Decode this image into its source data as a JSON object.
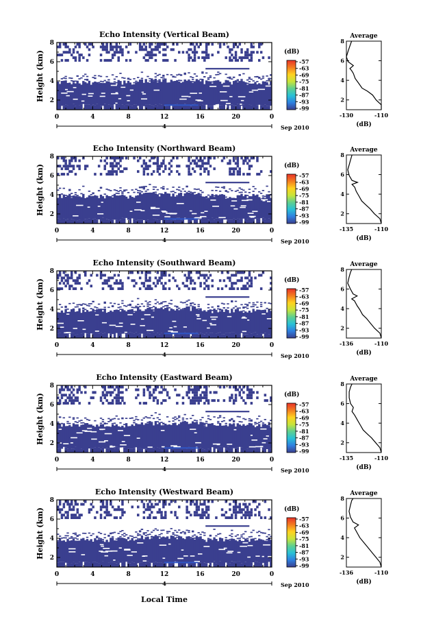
{
  "figure": {
    "xlabel": "Local Time",
    "date_label": "Sep 2010",
    "day_label": "4",
    "ylabel": "Height (km)",
    "avg_title": "Average",
    "unit_label": "(dB)"
  },
  "colors": {
    "low": "#3a3f8f",
    "white": "#ffffff"
  },
  "colorbar": {
    "labels": [
      "-57",
      "-63",
      "-69",
      "-75",
      "-81",
      "-87",
      "-93",
      "-99"
    ],
    "stops": [
      "#e8332a",
      "#f47d20",
      "#ffd21f",
      "#c8e43a",
      "#5fd08f",
      "#29c1d6",
      "#2f80e0",
      "#3a3f8f"
    ]
  },
  "chart_data": [
    {
      "type": "heatmap",
      "title": "Echo Intensity (Vertical Beam)",
      "xlabel": "",
      "ylabel": "Height (km)",
      "xlim": [
        0,
        24
      ],
      "ylim": [
        1,
        8
      ],
      "xticks": [
        "0",
        "4",
        "8",
        "12",
        "16",
        "20",
        "0"
      ],
      "yticks": [
        "2",
        "4",
        "6",
        "8"
      ],
      "colorbar": {
        "unit": "(dB)",
        "range": [
          -99,
          -57
        ]
      },
      "average_profile": {
        "type": "line",
        "title": "Average",
        "xlabel": "(dB)",
        "xlim": [
          -130,
          -110
        ],
        "ylim": [
          1,
          8
        ],
        "xticks": [
          "-130",
          "-110"
        ],
        "yticks": [
          "2",
          "4",
          "6",
          "8"
        ],
        "points": [
          [
            -108,
            1.0
          ],
          [
            -110,
            1.5
          ],
          [
            -113,
            2.0
          ],
          [
            -115,
            2.5
          ],
          [
            -118,
            2.9
          ],
          [
            -121,
            3.2
          ],
          [
            -123,
            3.7
          ],
          [
            -125,
            4.2
          ],
          [
            -126,
            4.7
          ],
          [
            -127,
            5.0
          ],
          [
            -128,
            5.2
          ],
          [
            -126,
            5.5
          ],
          [
            -129,
            5.9
          ],
          [
            -130,
            6.4
          ],
          [
            -129,
            7.0
          ],
          [
            -128,
            7.5
          ],
          [
            -127,
            8.0
          ]
        ]
      }
    },
    {
      "type": "heatmap",
      "title": "Echo Intensity (Northward Beam)",
      "xlabel": "",
      "ylabel": "Height (km)",
      "xlim": [
        0,
        24
      ],
      "ylim": [
        1,
        8
      ],
      "xticks": [
        "0",
        "4",
        "8",
        "12",
        "16",
        "20",
        "0"
      ],
      "yticks": [
        "2",
        "4",
        "6",
        "8"
      ],
      "colorbar": {
        "unit": "(dB)",
        "range": [
          -99,
          -57
        ]
      },
      "average_profile": {
        "type": "line",
        "title": "Average",
        "xlabel": "(dB)",
        "xlim": [
          -135,
          -110
        ],
        "ylim": [
          1,
          8
        ],
        "xticks": [
          "-135",
          "-110"
        ],
        "yticks": [
          "2",
          "4",
          "6",
          "8"
        ],
        "points": [
          [
            -108,
            1.0
          ],
          [
            -111,
            1.5
          ],
          [
            -115,
            2.0
          ],
          [
            -118,
            2.5
          ],
          [
            -121,
            2.9
          ],
          [
            -124,
            3.3
          ],
          [
            -126,
            3.8
          ],
          [
            -128,
            4.3
          ],
          [
            -129,
            4.7
          ],
          [
            -131,
            5.0
          ],
          [
            -127,
            5.2
          ],
          [
            -131,
            5.4
          ],
          [
            -133,
            5.9
          ],
          [
            -134,
            6.5
          ],
          [
            -133,
            7.0
          ],
          [
            -132,
            7.5
          ],
          [
            -131,
            8.0
          ]
        ]
      }
    },
    {
      "type": "heatmap",
      "title": "Echo Intensity (Southward Beam)",
      "xlabel": "",
      "ylabel": "Height (km)",
      "xlim": [
        0,
        24
      ],
      "ylim": [
        1,
        8
      ],
      "xticks": [
        "0",
        "4",
        "8",
        "12",
        "16",
        "20",
        "0"
      ],
      "yticks": [
        "2",
        "4",
        "6",
        "8"
      ],
      "colorbar": {
        "unit": "(dB)",
        "range": [
          -99,
          -57
        ]
      },
      "average_profile": {
        "type": "line",
        "title": "Average",
        "xlabel": "(dB)",
        "xlim": [
          -136,
          -110
        ],
        "ylim": [
          1,
          8
        ],
        "xticks": [
          "-136",
          "-110"
        ],
        "yticks": [
          "2",
          "4",
          "6",
          "8"
        ],
        "points": [
          [
            -108,
            1.0
          ],
          [
            -111,
            1.5
          ],
          [
            -115,
            2.0
          ],
          [
            -118,
            2.5
          ],
          [
            -121,
            3.0
          ],
          [
            -124,
            3.4
          ],
          [
            -126,
            3.9
          ],
          [
            -128,
            4.3
          ],
          [
            -130,
            4.8
          ],
          [
            -132,
            5.0
          ],
          [
            -128,
            5.3
          ],
          [
            -131,
            5.5
          ],
          [
            -133,
            6.0
          ],
          [
            -135,
            6.6
          ],
          [
            -134,
            7.2
          ],
          [
            -133,
            7.7
          ],
          [
            -132,
            8.0
          ]
        ]
      }
    },
    {
      "type": "heatmap",
      "title": "Echo Intensity (Eastward Beam)",
      "xlabel": "",
      "ylabel": "Height (km)",
      "xlim": [
        0,
        24
      ],
      "ylim": [
        1,
        8
      ],
      "xticks": [
        "0",
        "4",
        "8",
        "12",
        "16",
        "20",
        "0"
      ],
      "yticks": [
        "2",
        "4",
        "6",
        "8"
      ],
      "colorbar": {
        "unit": "(dB)",
        "range": [
          -99,
          -57
        ]
      },
      "average_profile": {
        "type": "line",
        "title": "Average",
        "xlabel": "(dB)",
        "xlim": [
          -135,
          -110
        ],
        "ylim": [
          1,
          8
        ],
        "xticks": [
          "-135",
          "-110"
        ],
        "yticks": [
          "2",
          "4",
          "6",
          "8"
        ],
        "points": [
          [
            -108,
            1.0
          ],
          [
            -111,
            1.5
          ],
          [
            -114,
            2.0
          ],
          [
            -117,
            2.5
          ],
          [
            -120,
            2.9
          ],
          [
            -123,
            3.3
          ],
          [
            -125,
            3.8
          ],
          [
            -127,
            4.3
          ],
          [
            -129,
            4.8
          ],
          [
            -131,
            5.2
          ],
          [
            -130,
            5.6
          ],
          [
            -132,
            6.0
          ],
          [
            -133,
            6.6
          ],
          [
            -133,
            7.2
          ],
          [
            -132,
            7.7
          ],
          [
            -131,
            8.0
          ]
        ]
      }
    },
    {
      "type": "heatmap",
      "title": "Echo Intensity (Westward Beam)",
      "xlabel": "Local Time",
      "ylabel": "Height (km)",
      "xlim": [
        0,
        24
      ],
      "ylim": [
        1,
        8
      ],
      "xticks": [
        "0",
        "4",
        "8",
        "12",
        "16",
        "20",
        "0"
      ],
      "yticks": [
        "2",
        "4",
        "6",
        "8"
      ],
      "colorbar": {
        "unit": "(dB)",
        "range": [
          -99,
          -57
        ]
      },
      "average_profile": {
        "type": "line",
        "title": "Average",
        "xlabel": "(dB)",
        "xlim": [
          -136,
          -110
        ],
        "ylim": [
          1,
          8
        ],
        "xticks": [
          "-136",
          "-110"
        ],
        "yticks": [
          "2",
          "4",
          "6",
          "8"
        ],
        "points": [
          [
            -108,
            1.0
          ],
          [
            -111,
            1.5
          ],
          [
            -114,
            2.0
          ],
          [
            -117,
            2.5
          ],
          [
            -120,
            3.0
          ],
          [
            -123,
            3.5
          ],
          [
            -126,
            4.0
          ],
          [
            -128,
            4.5
          ],
          [
            -130,
            5.0
          ],
          [
            -127,
            5.3
          ],
          [
            -131,
            5.6
          ],
          [
            -133,
            6.1
          ],
          [
            -134,
            6.7
          ],
          [
            -133,
            7.3
          ],
          [
            -132,
            7.8
          ],
          [
            -131,
            8.0
          ]
        ]
      }
    }
  ]
}
